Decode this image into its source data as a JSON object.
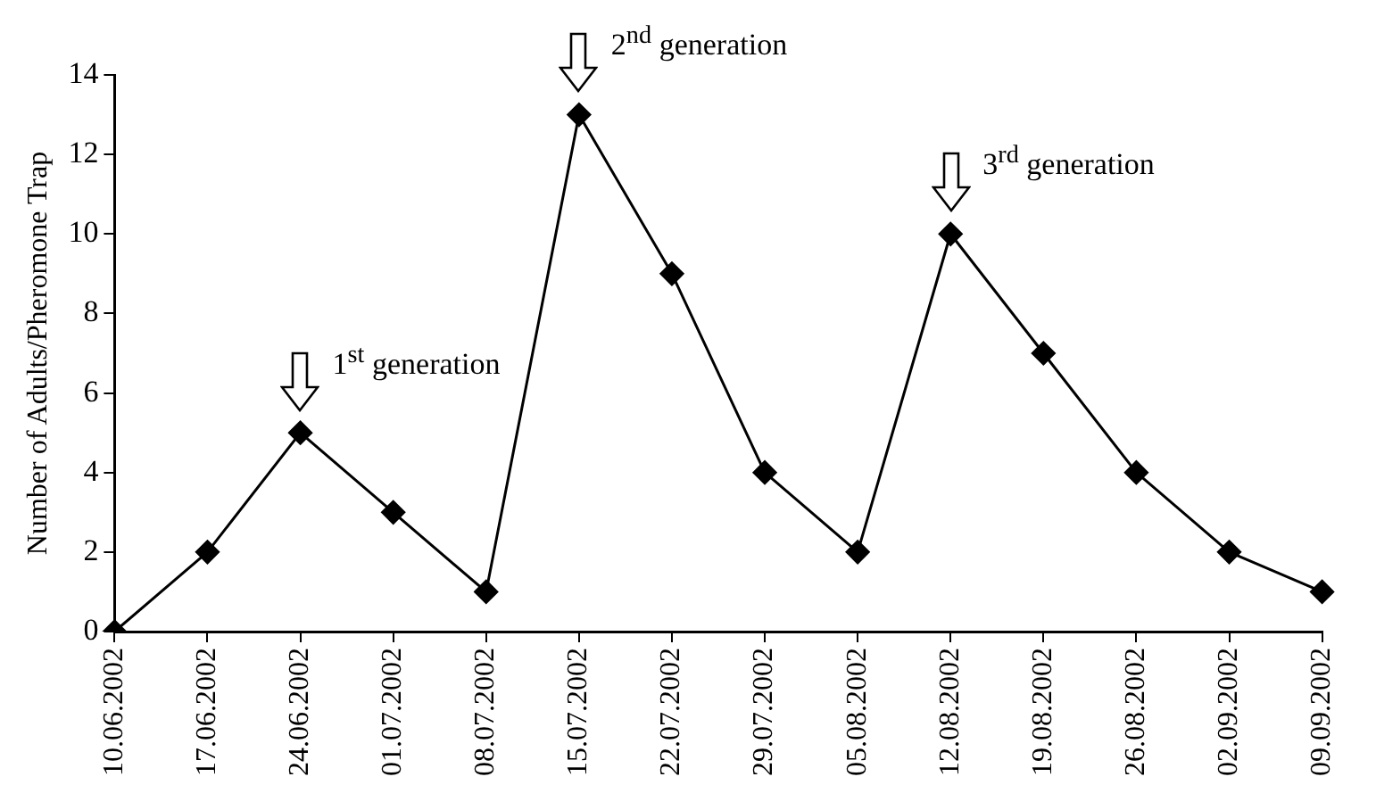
{
  "chart_data": {
    "type": "line",
    "ylabel": "Number of Adults/Pheromone Trap",
    "categories": [
      "10.06.2002",
      "17.06.2002",
      "24.06.2002",
      "01.07.2002",
      "08.07.2002",
      "15.07.2002",
      "22.07.2002",
      "29.07.2002",
      "05.08.2002",
      "12.08.2002",
      "19.08.2002",
      "26.08.2002",
      "02.09.2002",
      "09.09.2002"
    ],
    "series": [
      {
        "color": "#000000",
        "values": [
          0,
          2,
          5,
          3,
          1,
          13,
          9,
          4,
          2,
          10,
          7,
          4,
          2,
          1
        ]
      }
    ],
    "ylim": [
      0,
      14
    ],
    "yticks": [
      0,
      2,
      4,
      6,
      8,
      10,
      12,
      14
    ],
    "grid": false,
    "legend": false,
    "marker": "diamond",
    "line_style": "solid",
    "annotations": [
      {
        "text": "1$^{st}$ generation",
        "x": "24.06.2002",
        "y": 5
      },
      {
        "text": "2$^{nd}$ generation",
        "x": "15.07.2002",
        "y": 13
      },
      {
        "text": "3$^{rd}$ generation",
        "x": "12.08.2002",
        "y": 10
      }
    ]
  }
}
